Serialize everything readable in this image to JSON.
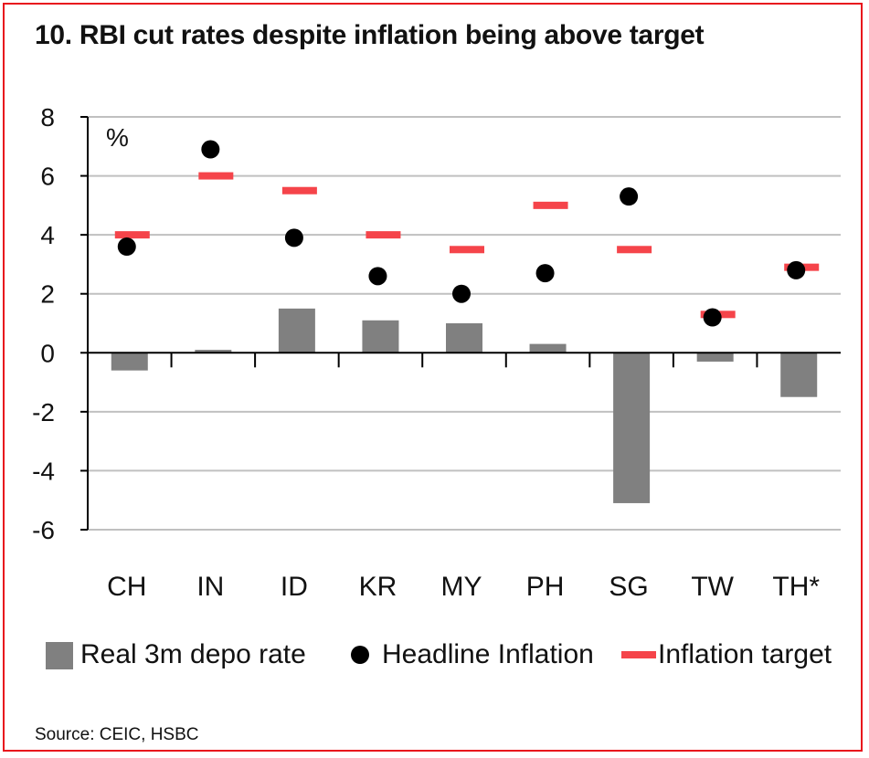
{
  "title": "10. RBI cut rates despite inflation being above target",
  "source": "Source: CEIC, HSBC",
  "colors": {
    "bar": "#808080",
    "dot": "#000000",
    "target": "#f5444a",
    "grid": "#c0c0c0",
    "border": "#e8141d"
  },
  "chart_data": {
    "type": "bar",
    "title": "10. RBI cut rates despite inflation being above target",
    "unit_label": "%",
    "categories": [
      "CH",
      "IN",
      "ID",
      "KR",
      "MY",
      "PH",
      "SG",
      "TW",
      "TH*"
    ],
    "ylim": [
      -6,
      8
    ],
    "yticks": [
      "8",
      "6",
      "4",
      "2",
      "0",
      "-2",
      "-4",
      "-6"
    ],
    "grid": true,
    "legend_position": "bottom",
    "series": [
      {
        "name": "Real 3m depo rate",
        "type": "bar",
        "values": [
          -0.6,
          0.1,
          1.5,
          1.1,
          1.0,
          0.3,
          -5.1,
          -0.3,
          -1.5
        ]
      },
      {
        "name": "Headline Inflation",
        "type": "scatter-dot",
        "values": [
          3.6,
          6.9,
          3.9,
          2.6,
          2.0,
          2.7,
          5.3,
          1.2,
          2.8
        ]
      },
      {
        "name": "Inflation target",
        "type": "target-dash",
        "values": [
          4.0,
          6.0,
          5.5,
          4.0,
          3.5,
          5.0,
          3.5,
          1.3,
          2.9
        ]
      }
    ]
  }
}
